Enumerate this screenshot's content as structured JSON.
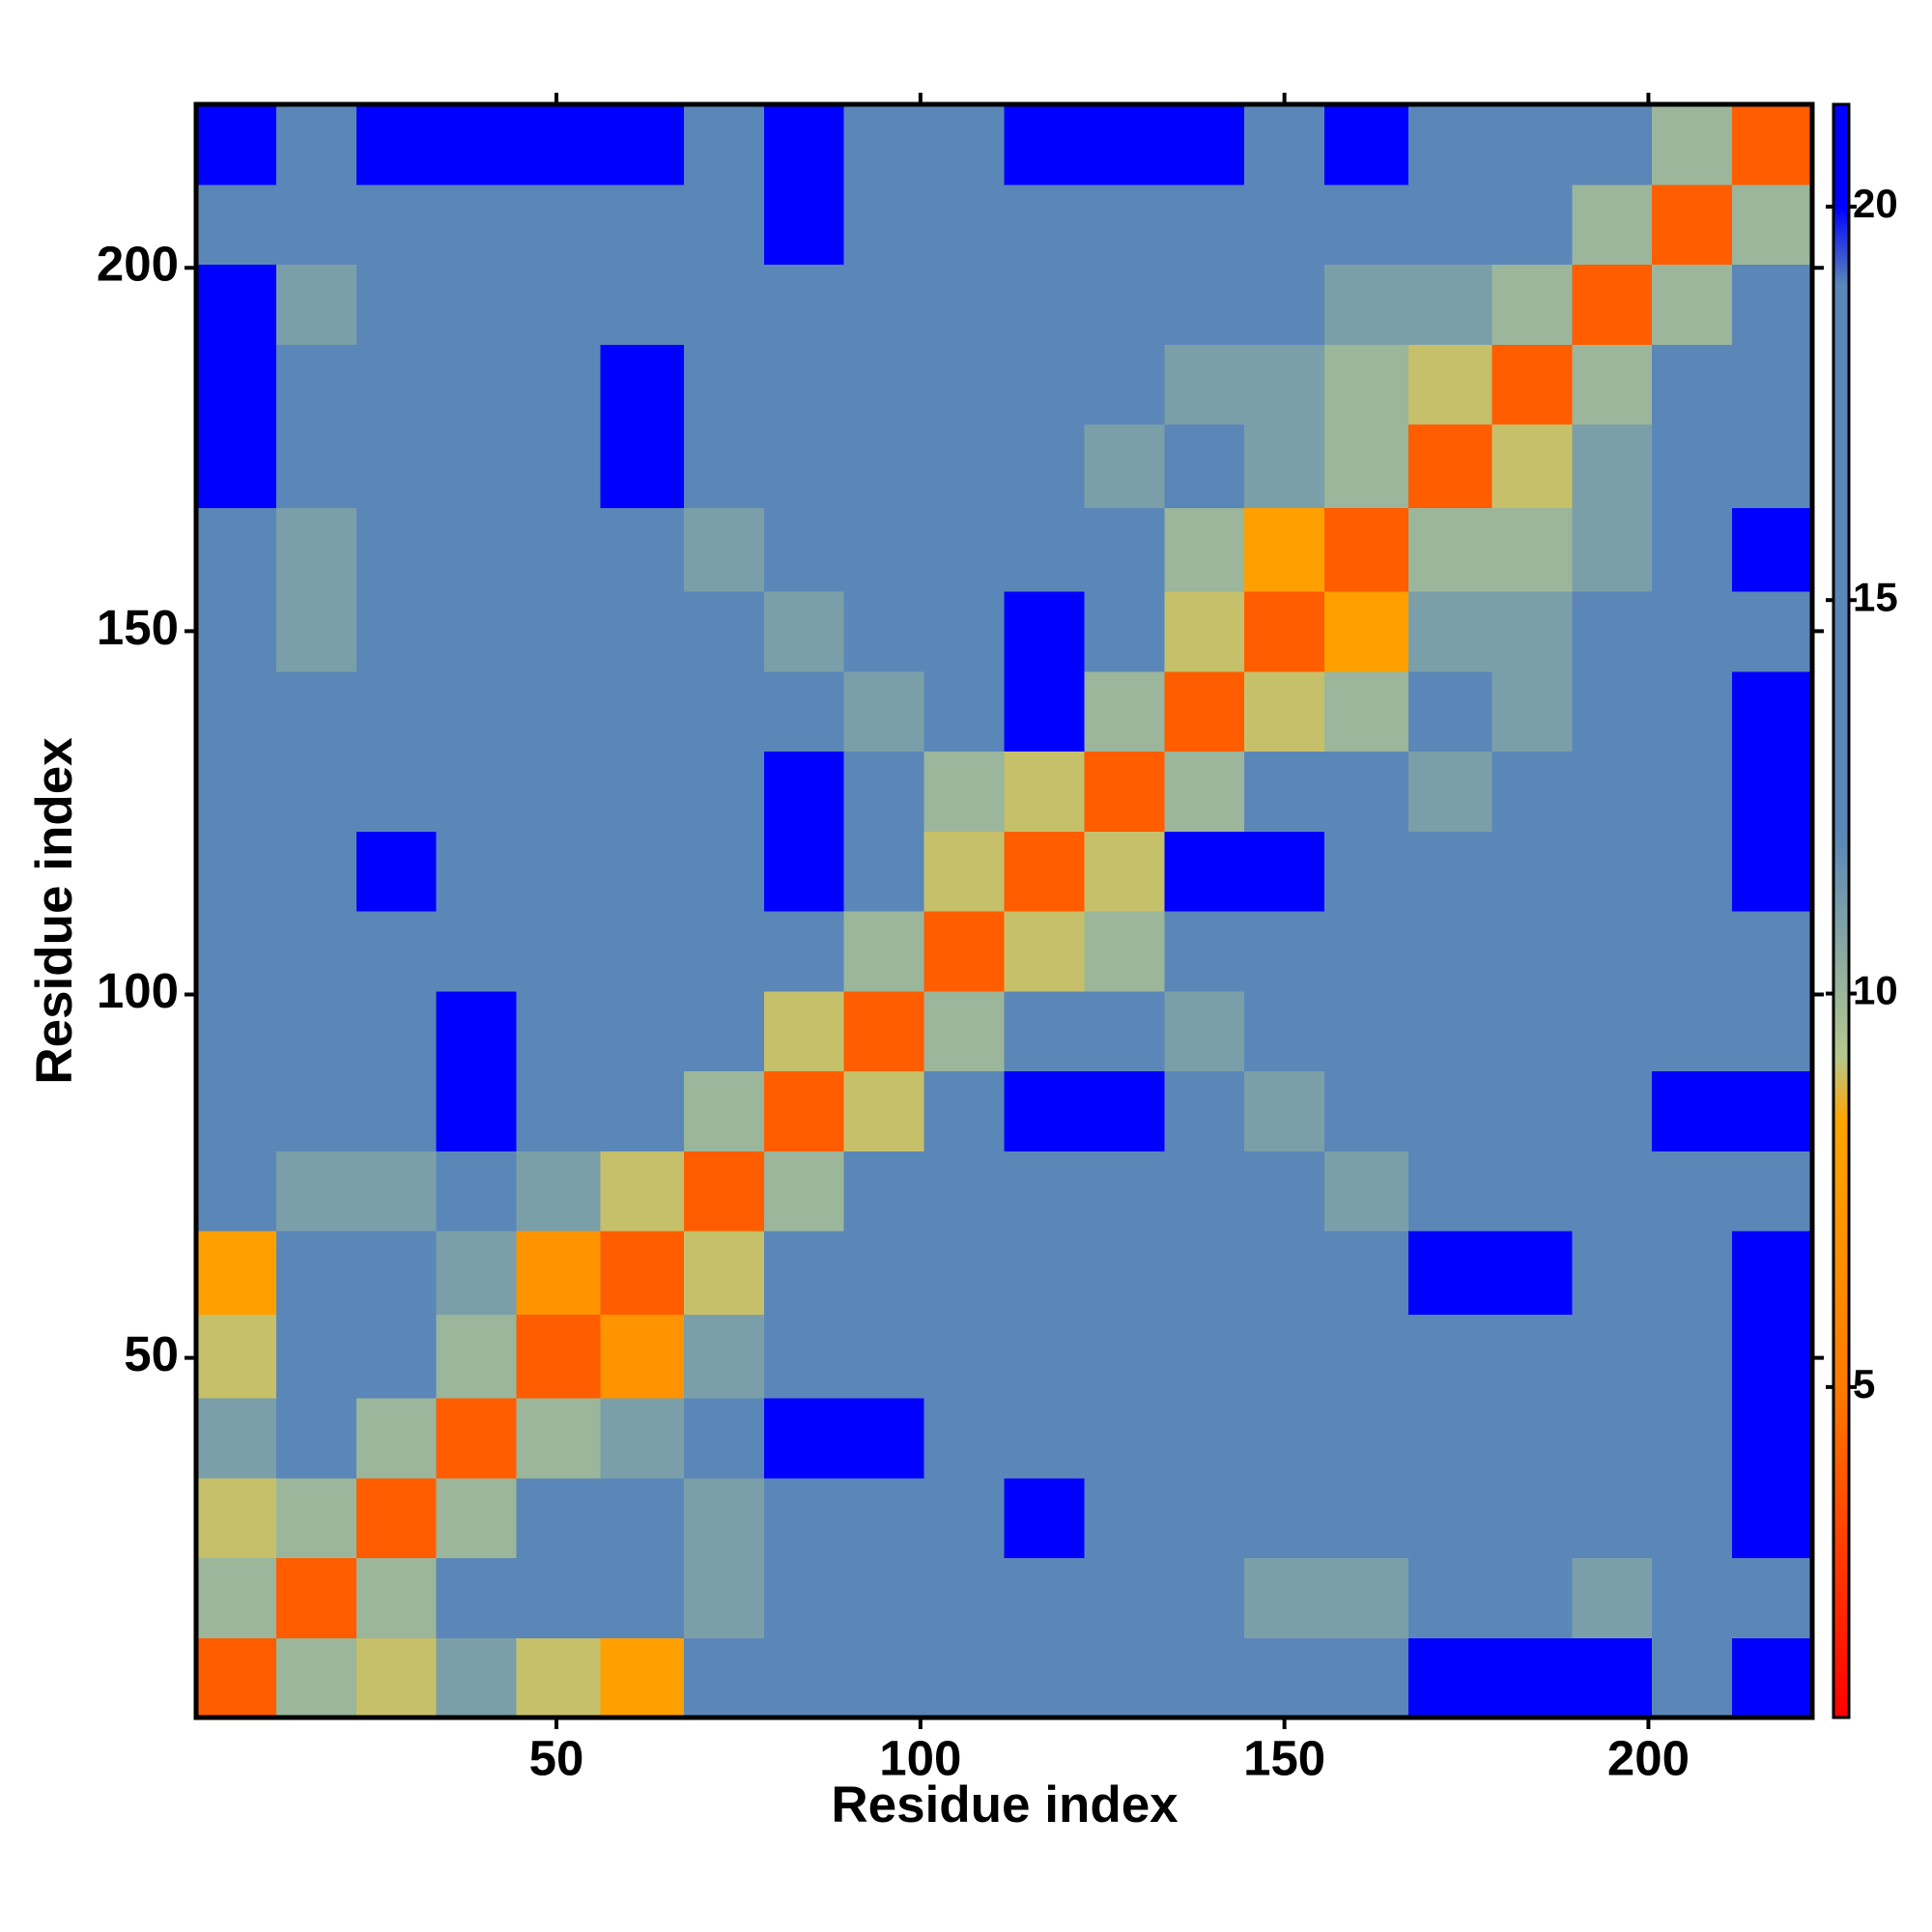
{
  "chart_data": {
    "type": "heatmap",
    "xlabel": "Residue index",
    "ylabel": "Residue index",
    "x": [
      6,
      17,
      28,
      39,
      50,
      62,
      73,
      84,
      95,
      106,
      117,
      128,
      139,
      150,
      161,
      173,
      184,
      195,
      206,
      217
    ],
    "y": [
      6,
      17,
      28,
      39,
      50,
      62,
      73,
      84,
      95,
      106,
      117,
      128,
      139,
      150,
      161,
      173,
      184,
      195,
      206,
      217
    ],
    "z": [
      [
        4,
        10,
        9,
        11,
        9,
        8,
        12,
        13,
        14,
        15,
        19,
        19,
        19,
        18,
        17,
        20,
        20,
        20,
        15,
        21
      ],
      [
        10,
        4,
        10,
        12,
        12,
        12,
        11,
        12,
        13,
        12,
        15,
        16,
        15,
        11,
        11,
        14,
        16,
        11,
        14,
        17
      ],
      [
        9,
        10,
        4,
        10,
        12,
        12,
        11,
        18,
        16,
        15,
        20,
        19,
        17,
        12,
        12,
        16,
        16,
        12,
        14,
        20
      ],
      [
        11,
        12,
        10,
        4,
        10,
        11,
        12,
        22,
        20,
        16,
        17,
        17,
        18,
        17,
        17,
        19,
        19,
        16,
        16,
        22
      ],
      [
        9,
        12,
        12,
        10,
        4,
        7,
        11,
        15,
        16,
        16,
        17,
        17,
        16,
        17,
        16,
        16,
        17,
        16,
        17,
        22
      ],
      [
        8,
        12,
        12,
        11,
        7,
        4,
        9,
        12,
        13,
        14,
        16,
        18,
        17,
        16,
        13,
        21,
        20,
        16,
        17,
        21
      ],
      [
        12,
        11,
        11,
        12,
        11,
        9,
        4,
        10,
        12,
        13,
        19,
        16,
        14,
        12,
        11,
        16,
        16,
        15,
        16,
        17
      ],
      [
        13,
        12,
        18,
        22,
        15,
        12,
        10,
        4,
        9,
        17,
        22,
        20,
        12,
        11,
        12,
        12,
        17,
        16,
        20,
        21
      ],
      [
        14,
        13,
        16,
        20,
        16,
        13,
        12,
        9,
        4,
        10,
        15,
        13,
        11,
        13,
        12,
        12,
        16,
        16,
        17,
        18
      ],
      [
        15,
        12,
        15,
        16,
        16,
        14,
        13,
        17,
        10,
        4,
        9,
        10,
        18,
        18,
        12,
        12,
        14,
        15,
        17,
        18
      ],
      [
        19,
        15,
        20,
        17,
        17,
        16,
        19,
        22,
        15,
        9,
        4,
        9,
        22,
        21,
        16,
        12,
        14,
        19,
        18,
        20
      ],
      [
        19,
        16,
        19,
        17,
        17,
        18,
        16,
        20,
        13,
        10,
        9,
        4,
        10,
        13,
        13,
        11,
        12,
        15,
        17,
        21
      ],
      [
        19,
        15,
        17,
        18,
        16,
        17,
        14,
        12,
        11,
        18,
        22,
        10,
        4,
        9,
        10,
        12,
        11,
        13,
        16,
        20
      ],
      [
        18,
        11,
        12,
        17,
        17,
        16,
        12,
        11,
        13,
        18,
        21,
        13,
        9,
        4,
        8,
        11,
        11,
        12,
        14,
        17
      ],
      [
        17,
        11,
        12,
        17,
        16,
        13,
        11,
        12,
        12,
        12,
        16,
        13,
        10,
        8,
        4,
        10,
        10,
        11,
        13,
        20
      ],
      [
        20,
        14,
        16,
        19,
        16,
        21,
        16,
        12,
        12,
        12,
        12,
        11,
        12,
        11,
        10,
        4,
        9,
        11,
        13,
        19
      ],
      [
        20,
        16,
        16,
        19,
        17,
        20,
        16,
        17,
        16,
        14,
        14,
        12,
        11,
        11,
        10,
        9,
        4,
        10,
        13,
        14
      ],
      [
        20,
        11,
        12,
        16,
        16,
        16,
        15,
        16,
        16,
        15,
        19,
        15,
        13,
        12,
        11,
        11,
        10,
        4,
        10,
        13
      ],
      [
        15,
        14,
        14,
        16,
        17,
        17,
        16,
        20,
        17,
        17,
        18,
        17,
        16,
        14,
        13,
        13,
        13,
        10,
        4,
        10
      ],
      [
        21,
        17,
        20,
        22,
        22,
        21,
        17,
        21,
        18,
        18,
        20,
        21,
        20,
        17,
        20,
        19,
        14,
        13,
        10,
        4
      ]
    ],
    "xlim": [
      0.5,
      222.5
    ],
    "ylim": [
      0.5,
      222.5
    ],
    "xticks": [
      50,
      100,
      150,
      200
    ],
    "yticks": [
      50,
      100,
      150,
      200
    ],
    "zlim": [
      0.8,
      21.3
    ],
    "colorbar_ticks": [
      5,
      10,
      15,
      20
    ],
    "colorscale": [
      [
        0.8,
        "#ff0000"
      ],
      [
        5,
        "#ff7a00"
      ],
      [
        8.4,
        "#ffa500"
      ],
      [
        9.2,
        "#b5c98e"
      ],
      [
        12,
        "#5b87b8"
      ],
      [
        19,
        "#5b87b8"
      ],
      [
        20,
        "#0000ff"
      ],
      [
        21.3,
        "#0000ff"
      ]
    ]
  }
}
